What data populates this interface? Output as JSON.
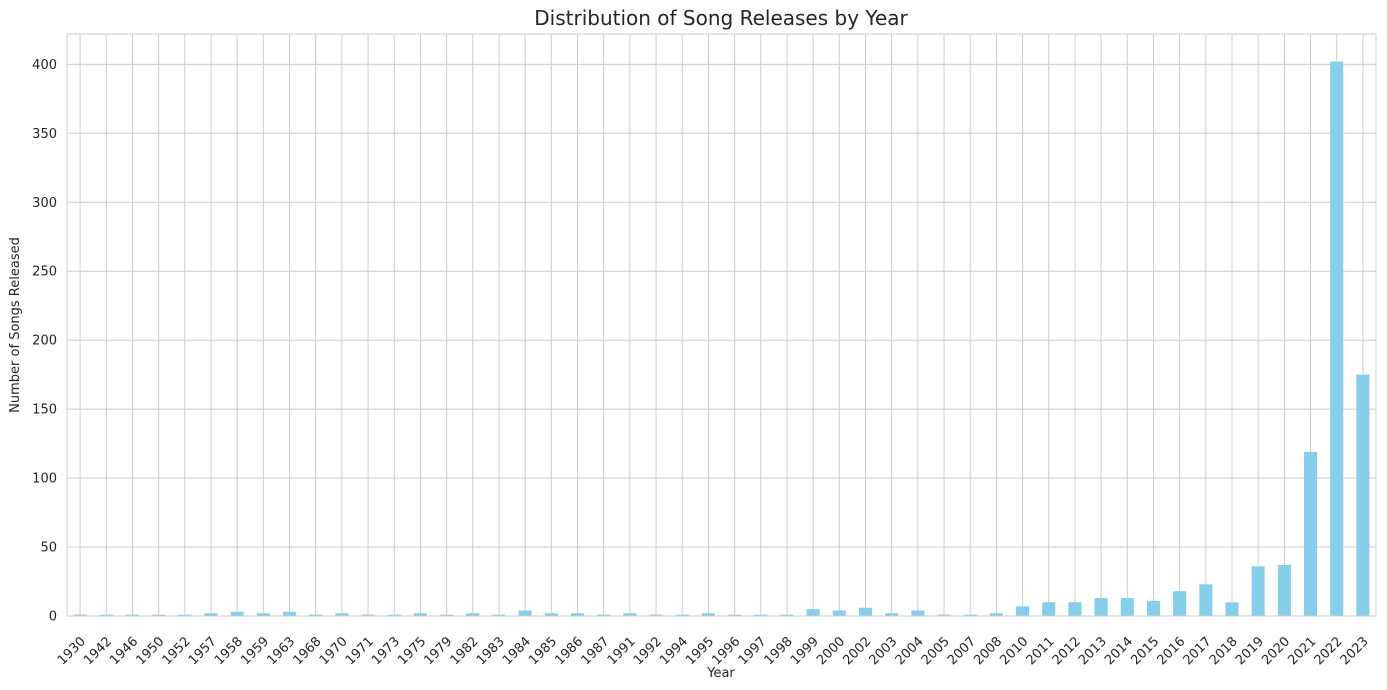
{
  "chart_data": {
    "type": "bar",
    "title": "Distribution of Song Releases by Year",
    "xlabel": "Year",
    "ylabel": "Number of Songs Released",
    "categories": [
      "1930",
      "1942",
      "1946",
      "1950",
      "1952",
      "1957",
      "1958",
      "1959",
      "1963",
      "1968",
      "1970",
      "1971",
      "1973",
      "1975",
      "1979",
      "1982",
      "1983",
      "1984",
      "1985",
      "1986",
      "1987",
      "1991",
      "1992",
      "1994",
      "1995",
      "1996",
      "1997",
      "1998",
      "1999",
      "2000",
      "2002",
      "2003",
      "2004",
      "2005",
      "2007",
      "2008",
      "2010",
      "2011",
      "2012",
      "2013",
      "2014",
      "2015",
      "2016",
      "2017",
      "2018",
      "2019",
      "2020",
      "2021",
      "2022",
      "2023"
    ],
    "values": [
      1,
      1,
      1,
      1,
      1,
      2,
      3,
      2,
      3,
      1,
      2,
      1,
      1,
      2,
      1,
      2,
      1,
      4,
      2,
      2,
      1,
      2,
      1,
      1,
      2,
      1,
      1,
      1,
      5,
      4,
      6,
      2,
      4,
      1,
      1,
      2,
      7,
      10,
      10,
      13,
      13,
      11,
      18,
      23,
      10,
      36,
      37,
      119,
      402,
      175
    ],
    "ylim": [
      0,
      422
    ],
    "yticks": [
      0,
      50,
      100,
      150,
      200,
      250,
      300,
      350,
      400
    ],
    "grid": true,
    "bar_color": "#87ceeb",
    "grid_color": "#cccccc"
  }
}
